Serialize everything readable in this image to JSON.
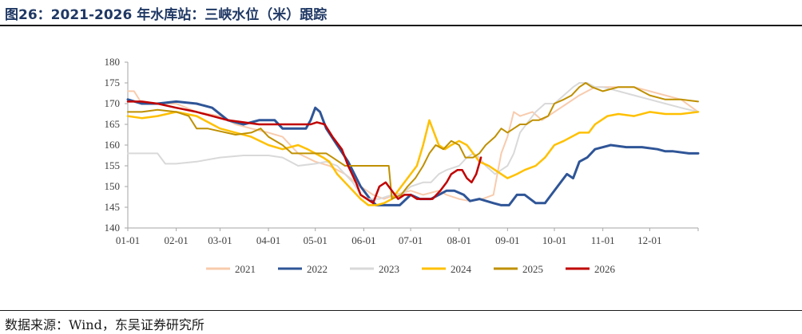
{
  "title": "图26：2021-2026 年水库站：三峡水位（米）跟踪",
  "source": "数据来源：Wind，东吴证券研究所",
  "chart_data": {
    "type": "line",
    "title": "",
    "xlabel": "",
    "ylabel": "",
    "ylim": [
      140,
      180
    ],
    "xlim": [
      1,
      366
    ],
    "x_tick_labels": [
      "01-01",
      "02-01",
      "03-01",
      "04-01",
      "05-01",
      "06-01",
      "07-01",
      "08-01",
      "09-01",
      "10-01",
      "11-01",
      "12-01"
    ],
    "x_tick_days": [
      1,
      32,
      60,
      91,
      121,
      152,
      182,
      213,
      244,
      274,
      305,
      335
    ],
    "y_ticks": [
      140,
      145,
      150,
      155,
      160,
      165,
      170,
      175,
      180
    ],
    "grid": false,
    "legend_position": "bottom",
    "x_unit": "day of year",
    "series": [
      {
        "name": "2021",
        "color": "#f8cbad",
        "width": 2.0,
        "points": [
          [
            1,
            173
          ],
          [
            5,
            173
          ],
          [
            10,
            170
          ],
          [
            20,
            170
          ],
          [
            32,
            170
          ],
          [
            45,
            168
          ],
          [
            60,
            167
          ],
          [
            70,
            165
          ],
          [
            80,
            164
          ],
          [
            91,
            163
          ],
          [
            100,
            162
          ],
          [
            110,
            158
          ],
          [
            121,
            156
          ],
          [
            130,
            155
          ],
          [
            140,
            153
          ],
          [
            150,
            150
          ],
          [
            158,
            148
          ],
          [
            165,
            147
          ],
          [
            172,
            148
          ],
          [
            182,
            149
          ],
          [
            190,
            148
          ],
          [
            200,
            149
          ],
          [
            205,
            148
          ],
          [
            213,
            147
          ],
          [
            220,
            146.5
          ],
          [
            228,
            147
          ],
          [
            235,
            148
          ],
          [
            240,
            158
          ],
          [
            244,
            162
          ],
          [
            248,
            168
          ],
          [
            252,
            167
          ],
          [
            260,
            168
          ],
          [
            266,
            166
          ],
          [
            274,
            168
          ],
          [
            282,
            170
          ],
          [
            290,
            172
          ],
          [
            300,
            174
          ],
          [
            305,
            174
          ],
          [
            315,
            174
          ],
          [
            325,
            174
          ],
          [
            335,
            173
          ],
          [
            345,
            172
          ],
          [
            355,
            171
          ],
          [
            366,
            168
          ]
        ]
      },
      {
        "name": "2022",
        "color": "#2f5597",
        "width": 3.0,
        "points": [
          [
            1,
            171
          ],
          [
            10,
            170
          ],
          [
            20,
            170
          ],
          [
            32,
            170.5
          ],
          [
            45,
            170
          ],
          [
            55,
            169
          ],
          [
            65,
            166
          ],
          [
            75,
            165
          ],
          [
            85,
            166
          ],
          [
            95,
            166
          ],
          [
            100,
            164
          ],
          [
            110,
            164
          ],
          [
            115,
            164
          ],
          [
            118,
            166
          ],
          [
            121,
            169
          ],
          [
            124,
            168
          ],
          [
            128,
            164
          ],
          [
            135,
            160
          ],
          [
            142,
            156
          ],
          [
            150,
            150
          ],
          [
            156,
            147
          ],
          [
            160,
            145.5
          ],
          [
            166,
            145.5
          ],
          [
            175,
            145.5
          ],
          [
            182,
            148
          ],
          [
            188,
            147
          ],
          [
            195,
            147
          ],
          [
            200,
            148
          ],
          [
            205,
            149
          ],
          [
            210,
            149
          ],
          [
            216,
            148
          ],
          [
            220,
            146.5
          ],
          [
            226,
            147
          ],
          [
            235,
            146
          ],
          [
            240,
            145.5
          ],
          [
            245,
            145.5
          ],
          [
            250,
            148
          ],
          [
            255,
            148
          ],
          [
            262,
            146
          ],
          [
            268,
            146
          ],
          [
            272,
            148
          ],
          [
            276,
            150
          ],
          [
            282,
            153
          ],
          [
            286,
            152
          ],
          [
            290,
            156
          ],
          [
            295,
            157
          ],
          [
            300,
            159
          ],
          [
            310,
            160
          ],
          [
            320,
            159.5
          ],
          [
            330,
            159.5
          ],
          [
            340,
            159
          ],
          [
            345,
            158.5
          ],
          [
            350,
            158.5
          ],
          [
            360,
            158
          ],
          [
            366,
            158
          ]
        ]
      },
      {
        "name": "2023",
        "color": "#d9d9d9",
        "width": 2.0,
        "points": [
          [
            1,
            158
          ],
          [
            10,
            158
          ],
          [
            20,
            158
          ],
          [
            25,
            155.5
          ],
          [
            32,
            155.5
          ],
          [
            45,
            156
          ],
          [
            60,
            157
          ],
          [
            75,
            157.5
          ],
          [
            91,
            157.5
          ],
          [
            100,
            157
          ],
          [
            110,
            155
          ],
          [
            121,
            155.5
          ],
          [
            128,
            156
          ],
          [
            135,
            155
          ],
          [
            145,
            151
          ],
          [
            150,
            148
          ],
          [
            155,
            147
          ],
          [
            162,
            147
          ],
          [
            170,
            148
          ],
          [
            176,
            148
          ],
          [
            182,
            150
          ],
          [
            190,
            151
          ],
          [
            195,
            151
          ],
          [
            200,
            153
          ],
          [
            205,
            154
          ],
          [
            213,
            155
          ],
          [
            218,
            157
          ],
          [
            222,
            158
          ],
          [
            226,
            157
          ],
          [
            230,
            155
          ],
          [
            236,
            153
          ],
          [
            240,
            154
          ],
          [
            244,
            155
          ],
          [
            248,
            158
          ],
          [
            252,
            163
          ],
          [
            258,
            166
          ],
          [
            262,
            168
          ],
          [
            268,
            170
          ],
          [
            274,
            170
          ],
          [
            280,
            172
          ],
          [
            286,
            174
          ],
          [
            290,
            175
          ],
          [
            295,
            175
          ],
          [
            300,
            174
          ],
          [
            305,
            174
          ],
          [
            315,
            173
          ],
          [
            325,
            172
          ],
          [
            335,
            171
          ],
          [
            345,
            170
          ],
          [
            355,
            169
          ],
          [
            366,
            168
          ]
        ]
      },
      {
        "name": "2024",
        "color": "#ffc000",
        "width": 2.5,
        "points": [
          [
            1,
            167
          ],
          [
            10,
            166.5
          ],
          [
            20,
            167
          ],
          [
            32,
            168
          ],
          [
            45,
            167
          ],
          [
            55,
            165
          ],
          [
            60,
            164
          ],
          [
            70,
            163
          ],
          [
            80,
            162
          ],
          [
            91,
            160
          ],
          [
            100,
            159
          ],
          [
            110,
            160
          ],
          [
            116,
            159
          ],
          [
            121,
            158
          ],
          [
            126,
            157
          ],
          [
            130,
            156
          ],
          [
            135,
            153
          ],
          [
            140,
            151
          ],
          [
            145,
            149
          ],
          [
            150,
            147
          ],
          [
            155,
            145.5
          ],
          [
            160,
            145.5
          ],
          [
            165,
            146
          ],
          [
            170,
            147
          ],
          [
            176,
            150
          ],
          [
            182,
            153
          ],
          [
            186,
            155
          ],
          [
            190,
            160
          ],
          [
            194,
            166
          ],
          [
            197,
            163
          ],
          [
            200,
            160
          ],
          [
            204,
            159
          ],
          [
            208,
            160
          ],
          [
            213,
            161
          ],
          [
            218,
            160
          ],
          [
            222,
            158
          ],
          [
            226,
            156
          ],
          [
            232,
            155
          ],
          [
            240,
            153
          ],
          [
            244,
            152
          ],
          [
            250,
            153
          ],
          [
            255,
            154
          ],
          [
            262,
            155
          ],
          [
            268,
            157
          ],
          [
            274,
            160
          ],
          [
            280,
            161
          ],
          [
            290,
            163
          ],
          [
            296,
            163
          ],
          [
            300,
            165
          ],
          [
            308,
            167
          ],
          [
            315,
            167.5
          ],
          [
            325,
            167
          ],
          [
            335,
            168
          ],
          [
            345,
            167.5
          ],
          [
            355,
            167.5
          ],
          [
            366,
            168
          ]
        ]
      },
      {
        "name": "2025",
        "color": "#bf9000",
        "width": 2.0,
        "points": [
          [
            1,
            168
          ],
          [
            10,
            168
          ],
          [
            20,
            168.5
          ],
          [
            32,
            168
          ],
          [
            40,
            167
          ],
          [
            45,
            164
          ],
          [
            52,
            164
          ],
          [
            58,
            163.5
          ],
          [
            64,
            163
          ],
          [
            70,
            162.5
          ],
          [
            80,
            163
          ],
          [
            86,
            164
          ],
          [
            91,
            162
          ],
          [
            100,
            160
          ],
          [
            106,
            158
          ],
          [
            112,
            158
          ],
          [
            121,
            158
          ],
          [
            128,
            158
          ],
          [
            132,
            157
          ],
          [
            136,
            156
          ],
          [
            140,
            155
          ],
          [
            145,
            155
          ],
          [
            150,
            155
          ],
          [
            154,
            155
          ],
          [
            157,
            155
          ],
          [
            160,
            155
          ],
          [
            164,
            155
          ],
          [
            168,
            155
          ],
          [
            170,
            147
          ],
          [
            176,
            148
          ],
          [
            180,
            150
          ],
          [
            185,
            152
          ],
          [
            190,
            155
          ],
          [
            194,
            158
          ],
          [
            198,
            160
          ],
          [
            203,
            159
          ],
          [
            208,
            161
          ],
          [
            213,
            160
          ],
          [
            217,
            157
          ],
          [
            222,
            157
          ],
          [
            226,
            158
          ],
          [
            230,
            160
          ],
          [
            236,
            162
          ],
          [
            240,
            164
          ],
          [
            244,
            163
          ],
          [
            248,
            164
          ],
          [
            252,
            165
          ],
          [
            256,
            165
          ],
          [
            260,
            166
          ],
          [
            264,
            166
          ],
          [
            270,
            167
          ],
          [
            274,
            170
          ],
          [
            280,
            171
          ],
          [
            285,
            172
          ],
          [
            290,
            174
          ],
          [
            294,
            175
          ],
          [
            298,
            174
          ],
          [
            305,
            173
          ],
          [
            315,
            174
          ],
          [
            325,
            174
          ],
          [
            335,
            172
          ],
          [
            345,
            171
          ],
          [
            355,
            171
          ],
          [
            366,
            170.5
          ]
        ]
      },
      {
        "name": "2026",
        "color": "#c00000",
        "width": 2.5,
        "points": [
          [
            1,
            170.5
          ],
          [
            10,
            170.5
          ],
          [
            20,
            170
          ],
          [
            32,
            169
          ],
          [
            45,
            168
          ],
          [
            55,
            167
          ],
          [
            65,
            166
          ],
          [
            75,
            165.5
          ],
          [
            85,
            165
          ],
          [
            95,
            165
          ],
          [
            105,
            165
          ],
          [
            112,
            165
          ],
          [
            118,
            165
          ],
          [
            122,
            165.5
          ],
          [
            127,
            165
          ],
          [
            132,
            162
          ],
          [
            138,
            159
          ],
          [
            142,
            155
          ],
          [
            147,
            151
          ],
          [
            150,
            148
          ],
          [
            154,
            147
          ],
          [
            158,
            146
          ],
          [
            162,
            150
          ],
          [
            166,
            151
          ],
          [
            170,
            149
          ],
          [
            174,
            147
          ],
          [
            178,
            148
          ],
          [
            182,
            148
          ],
          [
            186,
            147
          ],
          [
            190,
            147
          ],
          [
            196,
            147
          ],
          [
            201,
            149
          ],
          [
            205,
            151
          ],
          [
            208,
            153
          ],
          [
            212,
            154
          ],
          [
            215,
            154
          ],
          [
            218,
            152
          ],
          [
            221,
            151
          ],
          [
            224,
            153
          ],
          [
            227,
            157
          ]
        ]
      }
    ]
  }
}
